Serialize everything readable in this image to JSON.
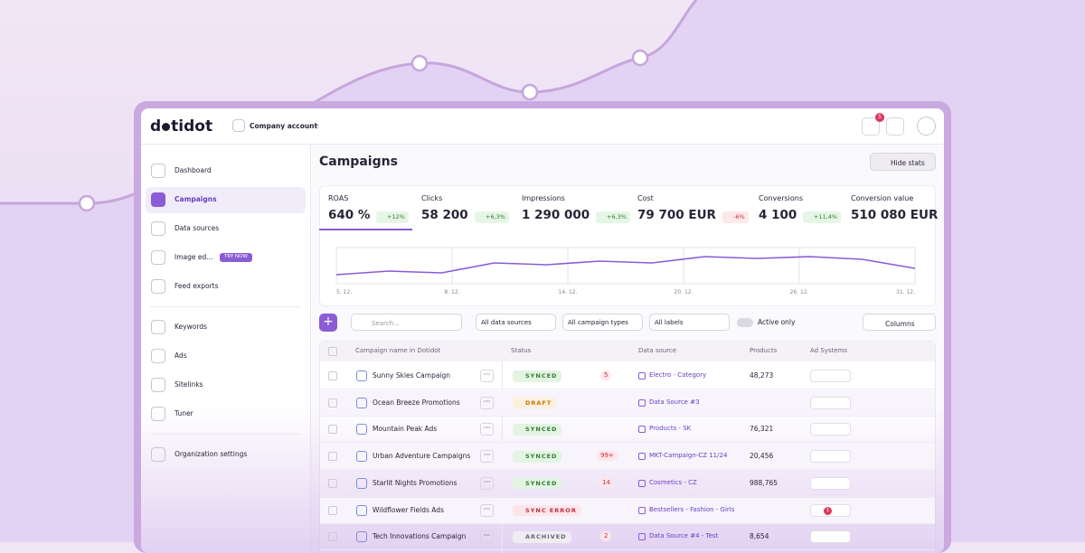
{
  "header": {
    "brand_start": "d",
    "brand_end": "tidot",
    "account": "Company account",
    "notifications": "5"
  },
  "nav": {
    "items": [
      "Dashboard",
      "Campaigns",
      "Data sources",
      "Image ed...",
      "Feed exports",
      "Keywords",
      "Ads",
      "Sitelinks",
      "Tuner",
      "Organization settings"
    ],
    "badge": "TRY NOW"
  },
  "page": {
    "title": "Campaigns",
    "hide_stats": "Hide stats"
  },
  "stats": [
    {
      "label": "ROAS",
      "value": "640 %",
      "change": "+12%",
      "trend": "up"
    },
    {
      "label": "Clicks",
      "value": "58 200",
      "change": "+6,3%",
      "trend": "up"
    },
    {
      "label": "Impressions",
      "value": "1 290 000",
      "change": "+6,3%",
      "trend": "up"
    },
    {
      "label": "Cost",
      "value": "79 700 EUR",
      "change": "-6%",
      "trend": "down"
    },
    {
      "label": "Conversions",
      "value": "4 100",
      "change": "+11,4%",
      "trend": "up"
    },
    {
      "label": "Conversion value",
      "value": "510 080 EUR",
      "change": null,
      "trend": null
    }
  ],
  "trend_chart": {
    "type": "line",
    "color": "#8a5cd6",
    "x_labels": [
      "5. 12.",
      "8. 12.",
      "14. 12.",
      "20. 12.",
      "26. 12.",
      "31. 12."
    ],
    "values": [
      10,
      14,
      12,
      23,
      21,
      25,
      23,
      30,
      28,
      30,
      27,
      17
    ]
  },
  "toolbar": {
    "search": "Search...",
    "filters": [
      "All data sources",
      "All campaign types",
      "All labels"
    ],
    "toggle": "Active only",
    "columns": "Columns"
  },
  "table": {
    "headers": [
      "Campaign name in Dotidot",
      "Status",
      "Data source",
      "Products",
      "Ad Systems"
    ],
    "rows": [
      {
        "name": "Sunny Skies Campaign",
        "status": "SYNCED",
        "count": "5",
        "source": "Electro - Category",
        "products": "48,273",
        "alert": null
      },
      {
        "name": "Ocean Breeze Promotions",
        "status": "DRAFT",
        "count": null,
        "source": "Data Source #3",
        "products": null,
        "alert": null
      },
      {
        "name": "Mountain Peak Ads",
        "status": "SYNCED",
        "count": null,
        "source": "Products - SK",
        "products": "76,321",
        "alert": null
      },
      {
        "name": "Urban Adventure Campaigns",
        "status": "SYNCED",
        "count": "99+",
        "source": "MKT-Campaign-CZ 11/24",
        "products": "20,456",
        "alert": null
      },
      {
        "name": "Starlit Nights Promotions",
        "status": "SYNCED",
        "count": "14",
        "source": "Cosmetics - CZ",
        "products": "988,765",
        "alert": null
      },
      {
        "name": "Wildflower Fields Ads",
        "status": "SYNC ERROR",
        "count": null,
        "source": "Bestsellers - Fashion - Girls",
        "products": null,
        "alert": "1"
      },
      {
        "name": "Tech Innovations Campaign",
        "status": "ARCHIVED",
        "count": "2",
        "source": "Data Source #4 - Test",
        "products": "8,654",
        "alert": null
      }
    ]
  }
}
